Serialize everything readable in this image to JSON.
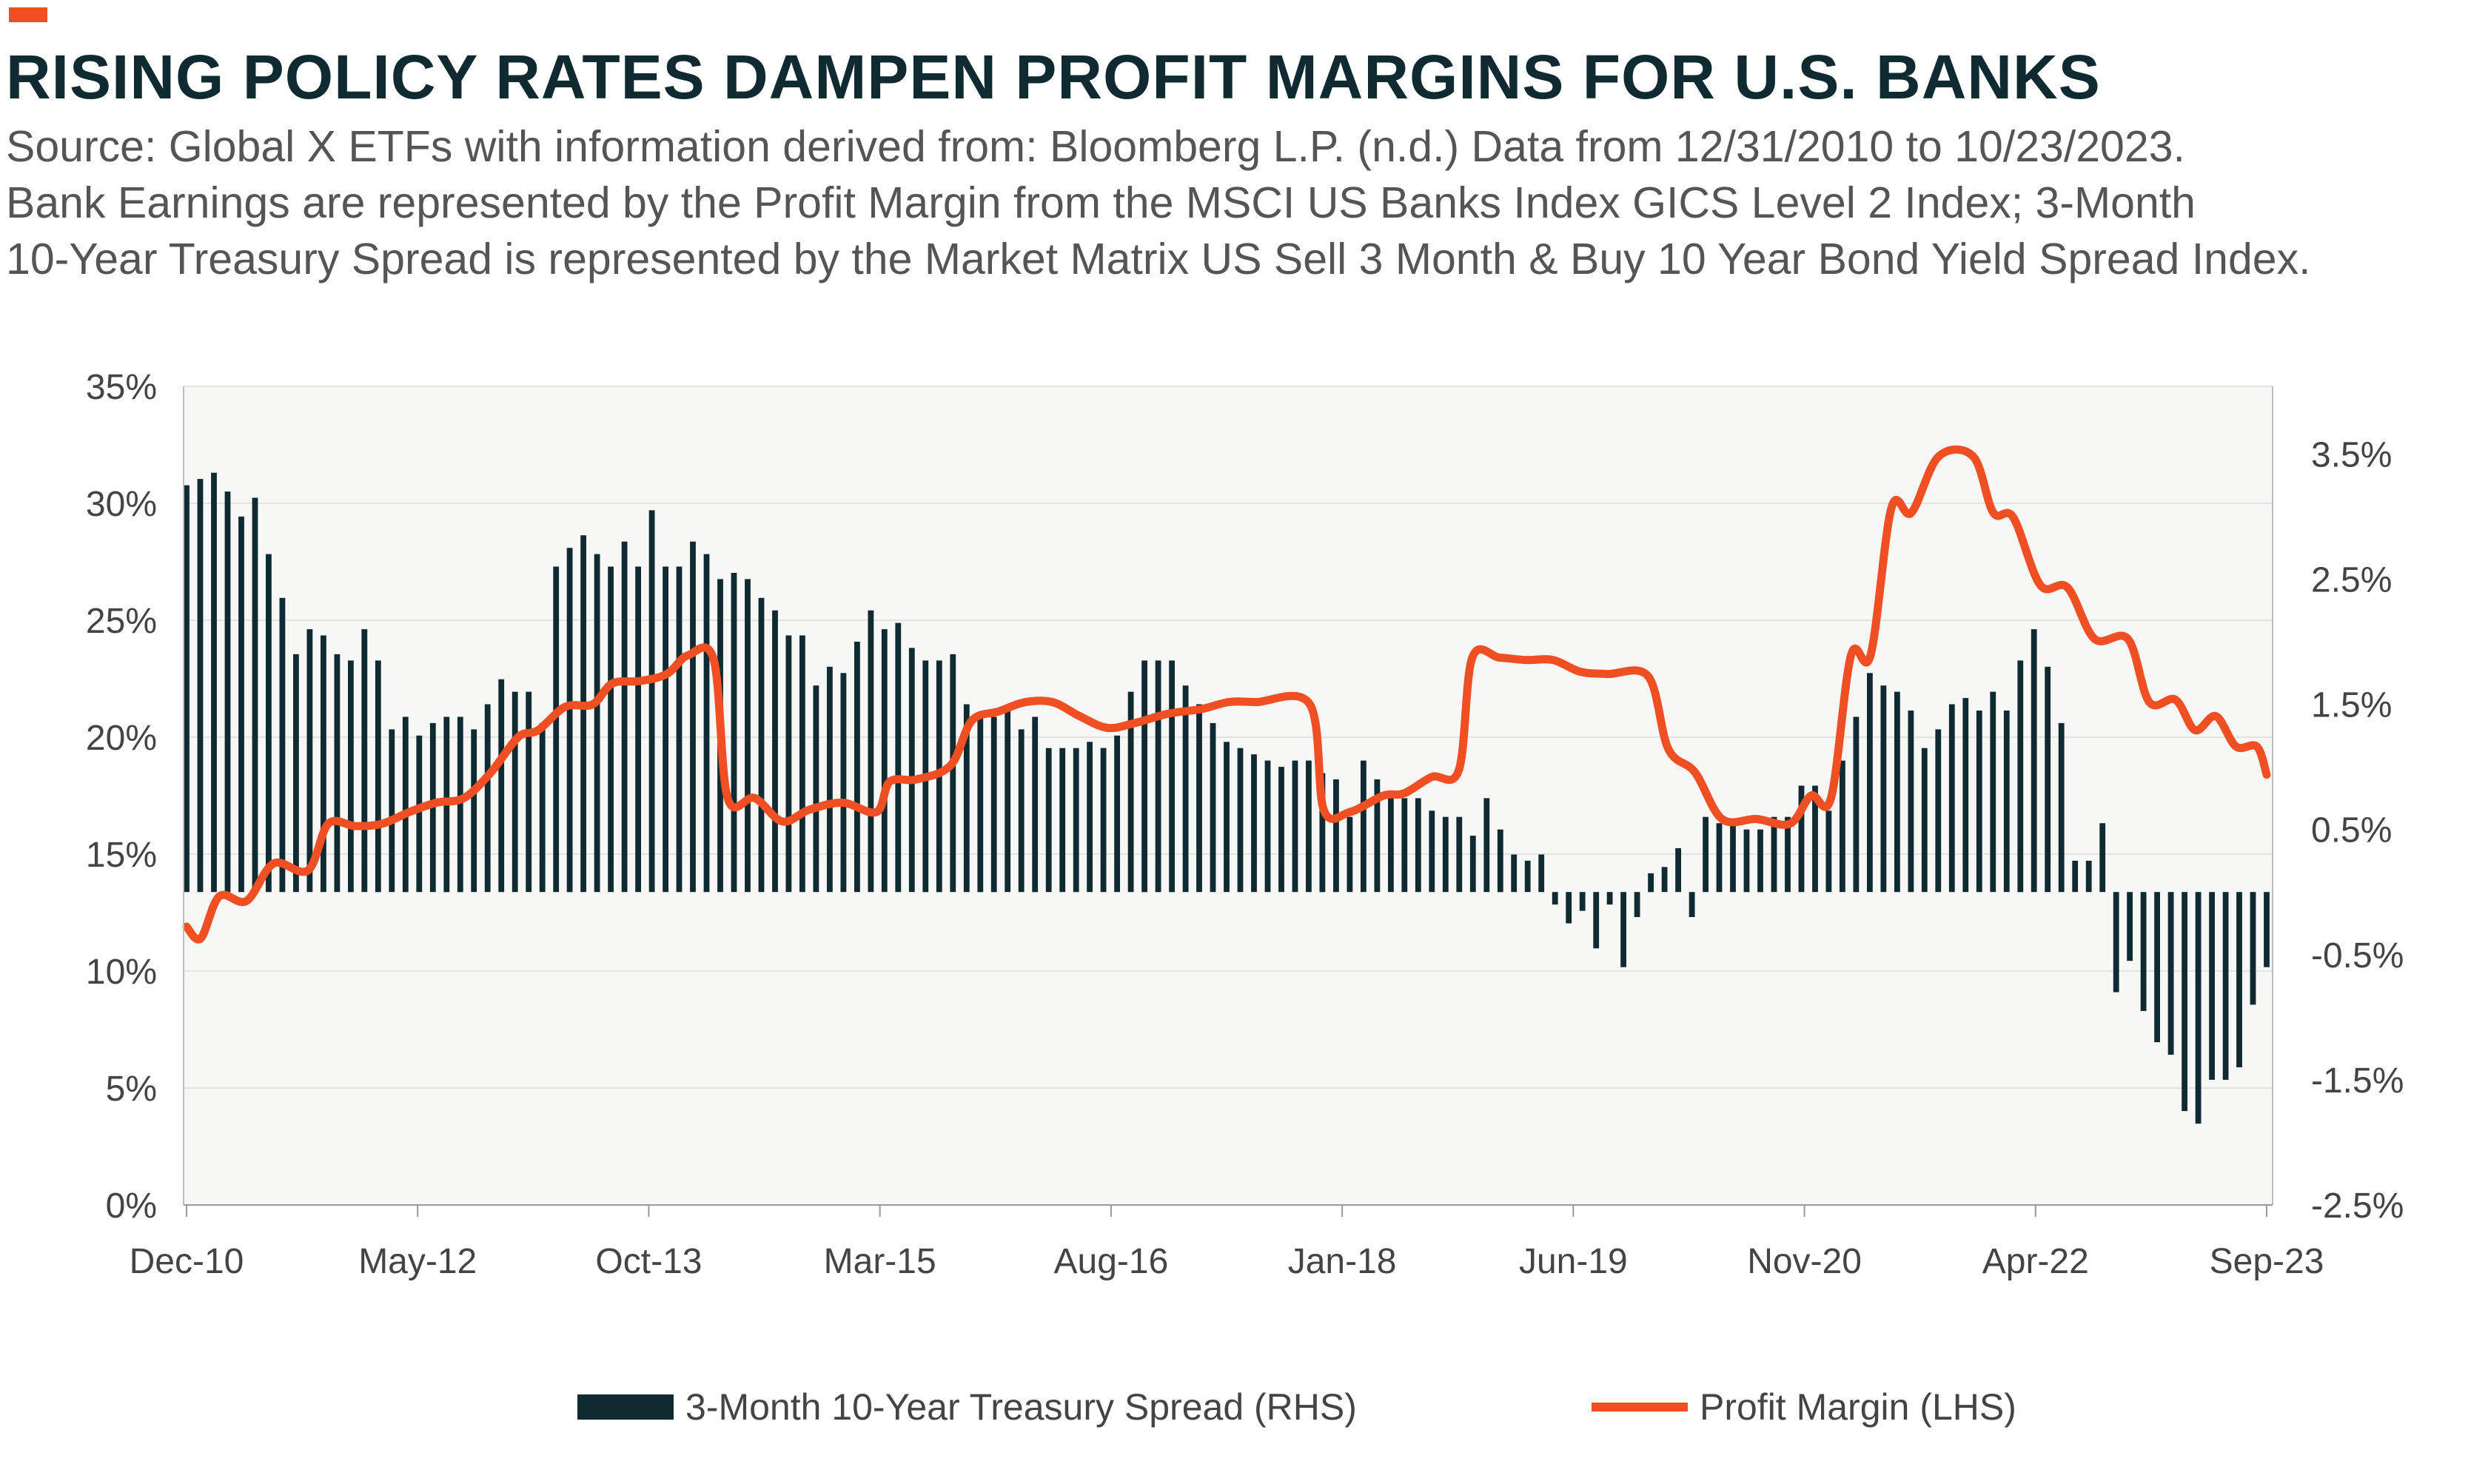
{
  "header": {
    "title": "RISING POLICY RATES DAMPEN PROFIT MARGINS FOR U.S. BANKS",
    "source_lines": [
      "Source: Global X ETFs with information derived from: Bloomberg L.P. (n.d.) Data from 12/31/2010 to 10/23/2023.",
      "Bank Earnings are represented by the Profit Margin from the MSCI US Banks Index GICS Level 2 Index; 3-Month",
      "10-Year Treasury Spread is represented by the Market Matrix US Sell 3 Month & Buy 10 Year Bond Yield Spread Index."
    ]
  },
  "colors": {
    "accent": "#ef4f23",
    "title": "#0f2a30",
    "bars": "#0f2a30",
    "line": "#ef4f23",
    "grid": "#e3e3e3",
    "plot_background": "#f7f7f5"
  },
  "chart_data": {
    "type": "bar+line",
    "x_tick_labels": [
      "Dec-10",
      "May-12",
      "Oct-13",
      "Mar-15",
      "Aug-16",
      "Jan-18",
      "Jun-19",
      "Nov-20",
      "Apr-22",
      "Sep-23"
    ],
    "left_axis": {
      "ticks": [
        "0%",
        "5%",
        "10%",
        "15%",
        "20%",
        "25%",
        "30%",
        "35%"
      ],
      "ylim": [
        0,
        35
      ]
    },
    "right_axis": {
      "ticks": [
        "-2.5%",
        "-1.5%",
        "-0.5%",
        "0.5%",
        "1.5%",
        "2.5%",
        "3.5%"
      ],
      "ylim": [
        -2.5,
        4.04
      ]
    },
    "grid": true,
    "legend_position": "bottom",
    "series": [
      {
        "name": "3-Month 10-Year Treasury Spread (RHS)",
        "type": "bar",
        "axis": "right",
        "x_range": [
          "2010-12-31",
          "2023-10-23"
        ],
        "values": [
          3.25,
          3.3,
          3.35,
          3.2,
          3.0,
          3.15,
          2.7,
          2.35,
          1.9,
          2.1,
          2.05,
          1.9,
          1.85,
          2.1,
          1.85,
          1.3,
          1.4,
          1.25,
          1.35,
          1.4,
          1.4,
          1.3,
          1.5,
          1.7,
          1.6,
          1.6,
          1.35,
          2.6,
          2.75,
          2.85,
          2.7,
          2.6,
          2.8,
          2.6,
          3.05,
          2.6,
          2.6,
          2.8,
          2.7,
          2.5,
          2.55,
          2.5,
          2.35,
          2.25,
          2.05,
          2.05,
          1.65,
          1.8,
          1.75,
          2.0,
          2.25,
          2.1,
          2.15,
          1.95,
          1.85,
          1.85,
          1.9,
          1.5,
          1.4,
          1.4,
          1.45,
          1.3,
          1.4,
          1.15,
          1.15,
          1.15,
          1.2,
          1.15,
          1.25,
          1.6,
          1.85,
          1.85,
          1.85,
          1.65,
          1.5,
          1.35,
          1.2,
          1.15,
          1.1,
          1.05,
          1.0,
          1.05,
          1.05,
          0.95,
          0.9,
          0.6,
          1.05,
          0.9,
          0.8,
          0.75,
          0.75,
          0.65,
          0.6,
          0.6,
          0.45,
          0.75,
          0.5,
          0.3,
          0.25,
          0.3,
          -0.1,
          -0.25,
          -0.15,
          -0.45,
          -0.1,
          -0.6,
          -0.2,
          0.15,
          0.2,
          0.35,
          -0.2,
          0.6,
          0.55,
          0.55,
          0.5,
          0.5,
          0.6,
          0.6,
          0.85,
          0.85,
          0.65,
          1.05,
          1.4,
          1.75,
          1.65,
          1.6,
          1.45,
          1.15,
          1.3,
          1.5,
          1.55,
          1.45,
          1.6,
          1.45,
          1.85,
          2.1,
          1.8,
          1.35,
          0.25,
          0.25,
          0.55,
          -0.8,
          -0.55,
          -0.95,
          -1.2,
          -1.3,
          -1.75,
          -1.85,
          -1.5,
          -1.5,
          -1.4,
          -0.9,
          -0.6
        ]
      },
      {
        "name": "Profit Margin (LHS)",
        "type": "line",
        "axis": "left",
        "points": [
          {
            "x": "2010-12-31",
            "y": 11.9
          },
          {
            "x": "2011-02-01",
            "y": 11.4
          },
          {
            "x": "2011-03-15",
            "y": 13.2
          },
          {
            "x": "2011-05-15",
            "y": 13.0
          },
          {
            "x": "2011-07-15",
            "y": 14.6
          },
          {
            "x": "2011-09-30",
            "y": 14.3
          },
          {
            "x": "2011-11-15",
            "y": 16.3
          },
          {
            "x": "2012-01-15",
            "y": 16.2
          },
          {
            "x": "2012-03-15",
            "y": 16.3
          },
          {
            "x": "2012-05-15",
            "y": 16.8
          },
          {
            "x": "2012-07-15",
            "y": 17.2
          },
          {
            "x": "2012-09-15",
            "y": 17.4
          },
          {
            "x": "2012-11-15",
            "y": 18.5
          },
          {
            "x": "2013-01-15",
            "y": 20.0
          },
          {
            "x": "2013-03-01",
            "y": 20.3
          },
          {
            "x": "2013-05-01",
            "y": 21.3
          },
          {
            "x": "2013-07-01",
            "y": 21.4
          },
          {
            "x": "2013-08-15",
            "y": 22.3
          },
          {
            "x": "2013-10-15",
            "y": 22.4
          },
          {
            "x": "2013-12-15",
            "y": 22.7
          },
          {
            "x": "2014-02-01",
            "y": 23.5
          },
          {
            "x": "2014-03-31",
            "y": 23.3
          },
          {
            "x": "2014-05-01",
            "y": 17.4
          },
          {
            "x": "2014-07-01",
            "y": 17.4
          },
          {
            "x": "2014-09-01",
            "y": 16.4
          },
          {
            "x": "2014-11-01",
            "y": 16.9
          },
          {
            "x": "2015-01-15",
            "y": 17.2
          },
          {
            "x": "2015-04-01",
            "y": 16.8
          },
          {
            "x": "2015-05-01",
            "y": 18.1
          },
          {
            "x": "2015-07-01",
            "y": 18.2
          },
          {
            "x": "2015-09-15",
            "y": 18.8
          },
          {
            "x": "2015-11-01",
            "y": 20.7
          },
          {
            "x": "2016-01-01",
            "y": 21.1
          },
          {
            "x": "2016-03-01",
            "y": 21.5
          },
          {
            "x": "2016-05-01",
            "y": 21.5
          },
          {
            "x": "2016-07-01",
            "y": 20.9
          },
          {
            "x": "2016-09-01",
            "y": 20.4
          },
          {
            "x": "2016-11-01",
            "y": 20.6
          },
          {
            "x": "2017-01-15",
            "y": 21.0
          },
          {
            "x": "2017-03-31",
            "y": 21.2
          },
          {
            "x": "2017-06-01",
            "y": 21.5
          },
          {
            "x": "2017-08-01",
            "y": 21.5
          },
          {
            "x": "2017-12-01",
            "y": 21.4
          },
          {
            "x": "2018-01-01",
            "y": 16.9
          },
          {
            "x": "2018-03-01",
            "y": 16.8
          },
          {
            "x": "2018-05-15",
            "y": 17.5
          },
          {
            "x": "2018-07-01",
            "y": 17.6
          },
          {
            "x": "2018-09-01",
            "y": 18.3
          },
          {
            "x": "2018-11-01",
            "y": 18.6
          },
          {
            "x": "2018-12-01",
            "y": 23.4
          },
          {
            "x": "2019-02-01",
            "y": 23.4
          },
          {
            "x": "2019-04-01",
            "y": 23.3
          },
          {
            "x": "2019-06-01",
            "y": 23.3
          },
          {
            "x": "2019-08-01",
            "y": 22.8
          },
          {
            "x": "2019-10-01",
            "y": 22.7
          },
          {
            "x": "2020-01-01",
            "y": 22.6
          },
          {
            "x": "2020-02-15",
            "y": 19.5
          },
          {
            "x": "2020-04-15",
            "y": 18.5
          },
          {
            "x": "2020-06-15",
            "y": 16.5
          },
          {
            "x": "2020-09-01",
            "y": 16.5
          },
          {
            "x": "2020-11-15",
            "y": 16.3
          },
          {
            "x": "2021-01-01",
            "y": 17.5
          },
          {
            "x": "2021-02-15",
            "y": 17.4
          },
          {
            "x": "2021-04-01",
            "y": 23.5
          },
          {
            "x": "2021-05-15",
            "y": 23.5
          },
          {
            "x": "2021-07-01",
            "y": 29.8
          },
          {
            "x": "2021-08-15",
            "y": 29.6
          },
          {
            "x": "2021-10-15",
            "y": 32.0
          },
          {
            "x": "2022-01-01",
            "y": 32.0
          },
          {
            "x": "2022-02-15",
            "y": 29.6
          },
          {
            "x": "2022-04-01",
            "y": 29.4
          },
          {
            "x": "2022-06-01",
            "y": 26.5
          },
          {
            "x": "2022-08-01",
            "y": 26.4
          },
          {
            "x": "2022-10-01",
            "y": 24.2
          },
          {
            "x": "2022-12-15",
            "y": 24.2
          },
          {
            "x": "2023-02-01",
            "y": 21.5
          },
          {
            "x": "2023-04-01",
            "y": 21.6
          },
          {
            "x": "2023-05-15",
            "y": 20.3
          },
          {
            "x": "2023-07-01",
            "y": 20.9
          },
          {
            "x": "2023-08-15",
            "y": 19.6
          },
          {
            "x": "2023-10-01",
            "y": 19.6
          },
          {
            "x": "2023-10-23",
            "y": 18.4
          }
        ]
      }
    ]
  }
}
